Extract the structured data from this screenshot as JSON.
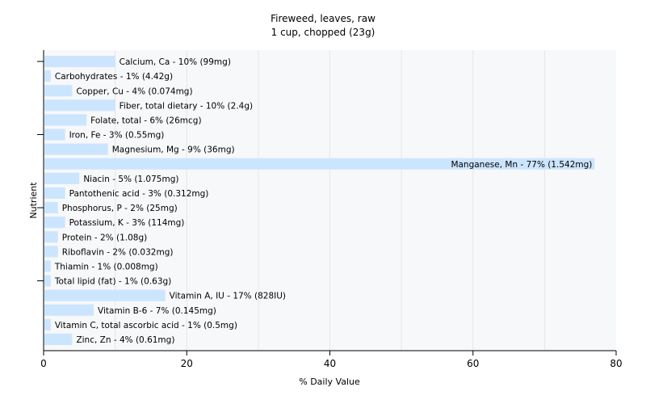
{
  "chart_data": {
    "type": "bar",
    "orientation": "horizontal",
    "title": "Fireweed, leaves, raw",
    "subtitle": "1 cup, chopped (23g)",
    "xlabel": "% Daily Value",
    "ylabel": "Nutrient",
    "xlim": [
      0,
      80
    ],
    "xticks": [
      0,
      20,
      40,
      60,
      80
    ],
    "grid": true,
    "bar_color": "#cce5ff",
    "categories": [
      "Calcium, Ca - 10% (99mg)",
      "Carbohydrates - 1% (4.42g)",
      "Copper, Cu - 4% (0.074mg)",
      "Fiber, total dietary - 10% (2.4g)",
      "Folate, total - 6% (26mcg)",
      "Iron, Fe - 3% (0.55mg)",
      "Magnesium, Mg - 9% (36mg)",
      "Manganese, Mn - 77% (1.542mg)",
      "Niacin - 5% (1.075mg)",
      "Pantothenic acid - 3% (0.312mg)",
      "Phosphorus, P - 2% (25mg)",
      "Potassium, K - 3% (114mg)",
      "Protein - 2% (1.08g)",
      "Riboflavin - 2% (0.032mg)",
      "Thiamin - 1% (0.008mg)",
      "Total lipid (fat) - 1% (0.63g)",
      "Vitamin A, IU - 17% (828IU)",
      "Vitamin B-6 - 7% (0.145mg)",
      "Vitamin C, total ascorbic acid - 1% (0.5mg)",
      "Zinc, Zn - 4% (0.61mg)"
    ],
    "values": [
      10,
      1,
      4,
      10,
      6,
      3,
      9,
      77,
      5,
      3,
      2,
      3,
      2,
      2,
      1,
      1,
      17,
      7,
      1,
      4
    ]
  }
}
